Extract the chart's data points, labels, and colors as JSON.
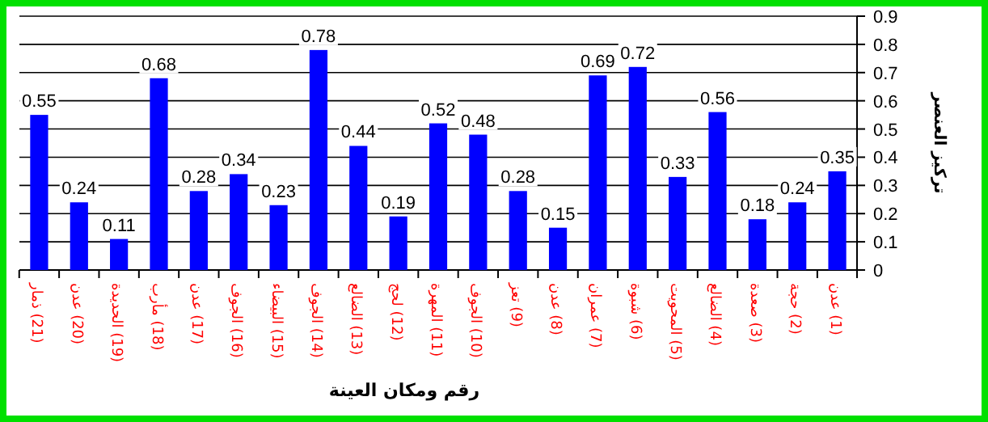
{
  "chart_data": {
    "type": "bar",
    "xlabel": "رقم ومكان العينة",
    "ylabel": "تركيز العنصر",
    "categories": [
      "(21) ذمار",
      "(20) عدن",
      "(19) الحديدة",
      "(18) مأرب",
      "(17) عدن",
      "(16) الجوف",
      "(15) البيضاء",
      "(14) الجوف",
      "(13) الضالع",
      "(12) لحج",
      "(11) المهرة",
      "(10) الجوف",
      "(9) تعز",
      "(8) عدن",
      "(7) عمران",
      "(6) شبوة",
      "(5) المحويت",
      "(4) الضالع",
      "(3) صعدة",
      "(2) حجة",
      "(1) عدن"
    ],
    "values": [
      0.55,
      0.24,
      0.11,
      0.68,
      0.28,
      0.34,
      0.23,
      0.78,
      0.44,
      0.19,
      0.52,
      0.48,
      0.28,
      0.15,
      0.69,
      0.72,
      0.33,
      0.56,
      0.18,
      0.24,
      0.35
    ],
    "color": "#0000ff",
    "ylim": [
      0,
      0.9
    ],
    "yticks": [
      {
        "value": 0,
        "label": "0"
      },
      0.1,
      0.2,
      0.3,
      0.4,
      0.5,
      0.6,
      0.7,
      0.8,
      0.9
    ],
    "grid": "y",
    "data_labels": true
  }
}
